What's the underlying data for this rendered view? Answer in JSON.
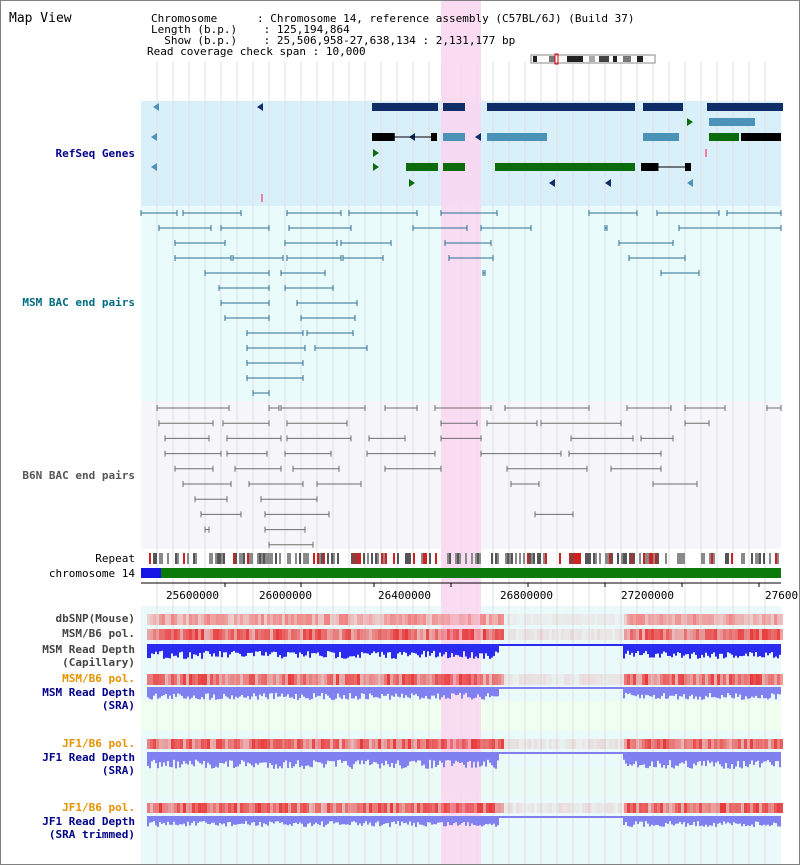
{
  "title": "Map View",
  "header": {
    "chromosome_key": "Chromosome",
    "chromosome_val": "Chromosome 14, reference assembly (C57BL/6J) (Build 37)",
    "length_key": "Length (b.p.)",
    "length_val": "125,194,864",
    "show_key": "Show (b.p.)",
    "show_val": "25,506,958-27,638,134 : 2,131,177 bp",
    "coverage_key": "Read coverage check span",
    "coverage_val": "10,000"
  },
  "labels": {
    "refseq": "RefSeq Genes",
    "msm_bac": "MSM BAC end pairs",
    "b6n_bac": "B6N BAC end pairs",
    "repeat": "Repeat",
    "chromosome": "chromosome 14",
    "dbsnp": "dbSNP(Mouse)",
    "msm_pol_top": "MSM/B6 pol.",
    "msm_read_depth_cap_1": "MSM Read Depth",
    "msm_read_depth_cap_2": "(Capillary)",
    "msm_pol_sra": "MSM/B6 pol.",
    "msm_read_depth_sra_1": "MSM Read Depth",
    "msm_read_depth_sra_2": "(SRA)",
    "jf1_pol_1": "JF1/B6 pol.",
    "jf1_read_depth_1": "JF1 Read Depth",
    "jf1_read_depth_1b": "(SRA)",
    "jf1_pol_2": "JF1/B6 pol.",
    "jf1_read_depth_2": "JF1 Read Depth",
    "jf1_read_depth_2b": "(SRA trimmed)"
  },
  "axis_ticks": [
    "25600000",
    "26000000",
    "26400000",
    "26800000",
    "27200000",
    "27600"
  ],
  "colors": {
    "refseq_bg": "#d9f0fa",
    "msm_bg": "#e9fbfb",
    "b6n_bg": "#f6f6fa",
    "highlight": "#f9d6f0",
    "gene_dark": "#0f2d66",
    "gene_mid": "#4a92b8",
    "gene_green": "#0c6c0c",
    "msm_line": "#2f6f96",
    "b6n_line": "#6e6e6e",
    "chrom_green": "#0b7a0b",
    "chrom_blue": "#1515e6",
    "label_blue": "#00008b",
    "label_teal": "#006d80",
    "label_orange": "#e59400",
    "label_gray": "#333333",
    "snp_red": "#f08080",
    "pol_red": "#e83838",
    "depth_blue": "#2a2af0",
    "depth_light": "#8080f0",
    "sra_bg": "#f0fff0"
  }
}
